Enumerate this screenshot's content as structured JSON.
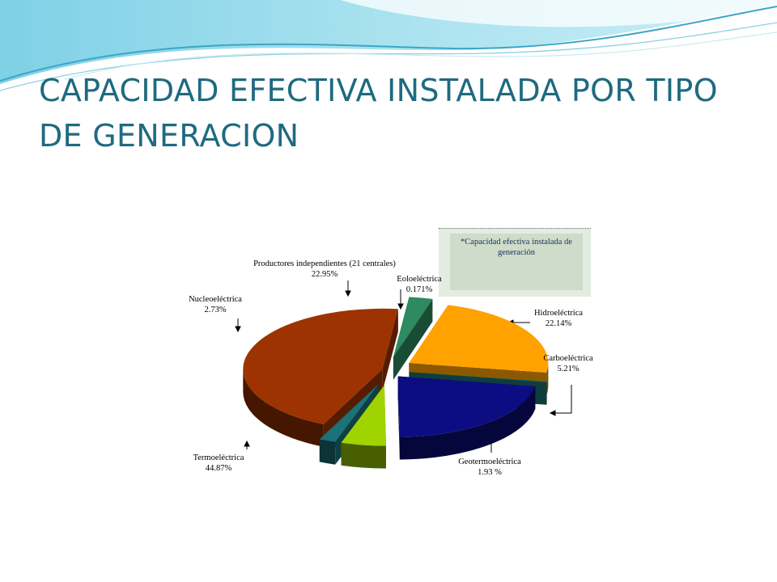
{
  "title": "CAPACIDAD EFECTIVA INSTALADA POR TIPO DE GENERACION",
  "note": "*Capacidad efectiva instalada de generación",
  "colors": {
    "title": "#1f6a80",
    "Termoeléctrica": "#9c3300",
    "Nucleoeléctrica": "#2e8a60",
    "Productores independientes (21 centrales)": "#ffa200",
    "Eoloeléctrica": "#1b6e70",
    "Hidroeléctrica": "#0c0d82",
    "Carboeléctrica": "#9fd400",
    "Geotermoeléctrica": "#1b7278"
  },
  "chart_data": {
    "type": "pie",
    "title": "",
    "slices": [
      {
        "label": "Termoeléctrica",
        "value": 44.87,
        "value_label": "44.87%"
      },
      {
        "label": "Nucleoeléctrica",
        "value": 2.73,
        "value_label": "2.73%"
      },
      {
        "label": "Productores independientes (21 centrales)",
        "value": 22.95,
        "value_label": "22.95%"
      },
      {
        "label": "Eoloeléctrica",
        "value": 0.171,
        "value_label": "0.171%"
      },
      {
        "label": "Hidroeléctrica",
        "value": 22.14,
        "value_label": "22.14%"
      },
      {
        "label": "Carboeléctrica",
        "value": 5.21,
        "value_label": "5.21%"
      },
      {
        "label": "Geotermoeléctrica",
        "value": 1.93,
        "value_label": "1.93 %"
      }
    ]
  }
}
